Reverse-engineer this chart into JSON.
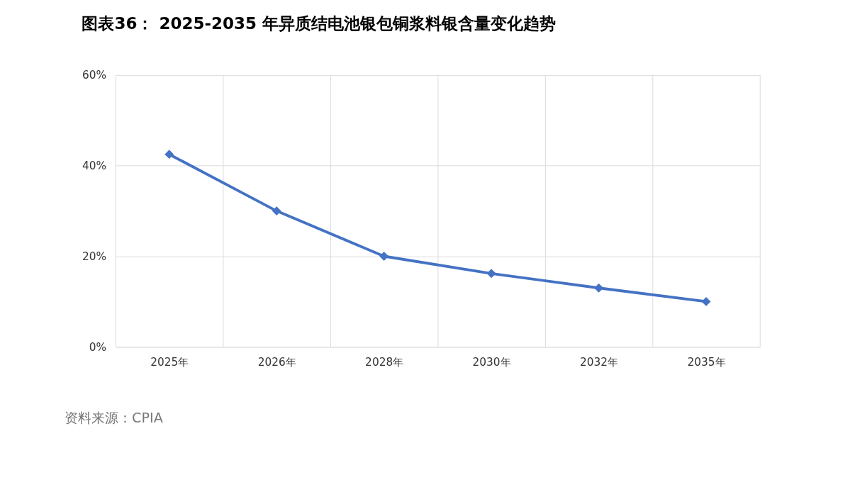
{
  "chart_data": {
    "type": "line",
    "title": "图表36： 2025-2035 年异质结电池银包铜浆料银含量变化趋势",
    "categories": [
      "2025年",
      "2026年",
      "2028年",
      "2030年",
      "2032年",
      "2035年"
    ],
    "series": [
      {
        "color": "#4472c4",
        "values": [
          42.5,
          30,
          20,
          16.2,
          13,
          10
        ]
      }
    ],
    "ylim": [
      0,
      60
    ],
    "yticks": [
      {
        "value": 0,
        "label": "0%"
      },
      {
        "value": 20,
        "label": "20%"
      },
      {
        "value": 40,
        "label": "40%"
      },
      {
        "value": 60,
        "label": "60%"
      }
    ],
    "grid": true,
    "marker": "diamond",
    "line_style": "solid",
    "annotations": [
      "资料来源：CPIA"
    ]
  }
}
